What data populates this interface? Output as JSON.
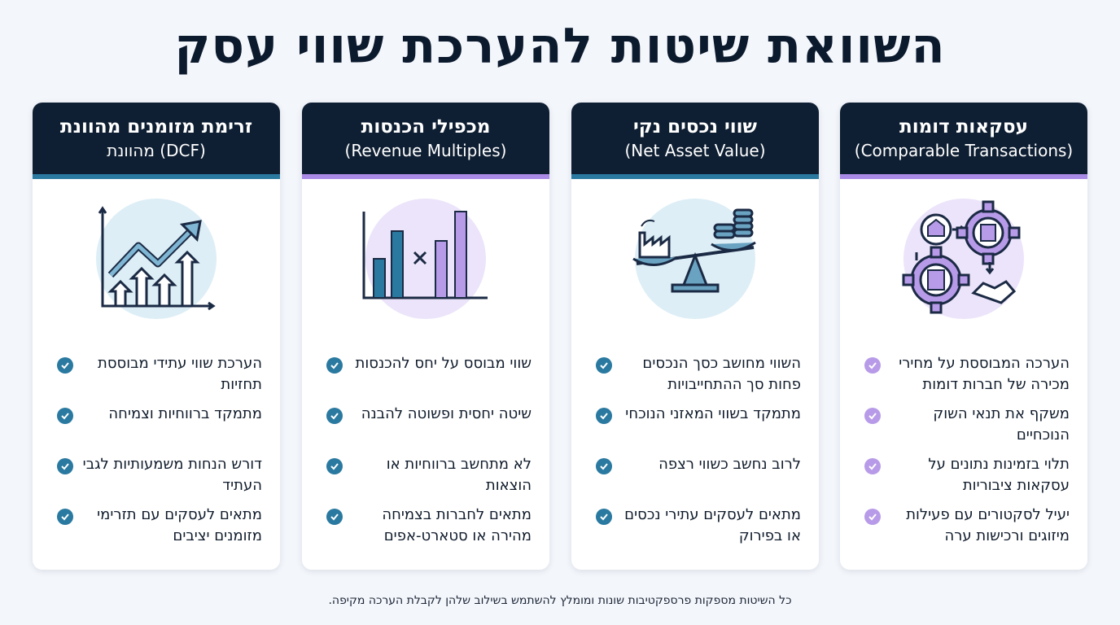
{
  "title": "השוואת שיטות להערכת שווי עסק",
  "colors": {
    "header": "#0f1f33",
    "purple": "#a98ae6",
    "teal": "#2a79a0"
  },
  "cards": [
    {
      "title": "עסקאות דומות",
      "subtitle": "(Comparable Transactions)",
      "icon": "gears-handshake-icon",
      "accent": "purple",
      "items": [
        "הערכה המבוססת על מחירי מכירה של חברות דומות",
        "משקף את תנאי השוק הנוכחיים",
        "תלוי בזמינות נתונים על עסקאות ציבוריות",
        "יעיל לסקטורים עם פעילות מיזוגים ורכישות ערה"
      ]
    },
    {
      "title": "שווי נכסים נקי",
      "subtitle": "(Net Asset Value)",
      "icon": "balance-scale-icon",
      "accent": "teal",
      "items": [
        "השווי מחושב כסך הנכסים פחות סך ההתחייבויות",
        "מתמקד בשווי המאזני הנוכחי",
        "לרוב נחשב כשווי רצפה",
        "מתאים לעסקים עתירי נכסים או בפירוק"
      ]
    },
    {
      "title": "מכפילי הכנסות",
      "subtitle": "(Revenue Multiples)",
      "icon": "bar-multiply-icon",
      "accent": "purple",
      "items": [
        "שווי מבוסס על יחס להכנסות",
        "שיטה יחסית ופשוטה להבנה",
        "לא מתחשב ברווחיות או הוצאות",
        "מתאים לחברות בצמיחה מהירה או סטארט-אפים"
      ]
    },
    {
      "title": "זרימת מזומנים מהוונת",
      "subtitle": "(DCF) מהוונת",
      "icon": "growth-chart-icon",
      "accent": "teal",
      "items": [
        "הערכת שווי עתידי מבוססת תחזיות",
        "מתמקד ברווחיות וצמיחה",
        "דורש הנחות משמעותיות לגבי העתיד",
        "מתאים לעסקים עם תזרימי מזומנים יציבים"
      ]
    }
  ],
  "footer": "כל השיטות מספקות פרספקטיבות שונות ומומלץ להשתמש בשילוב שלהן לקבלת הערכה מקיפה."
}
